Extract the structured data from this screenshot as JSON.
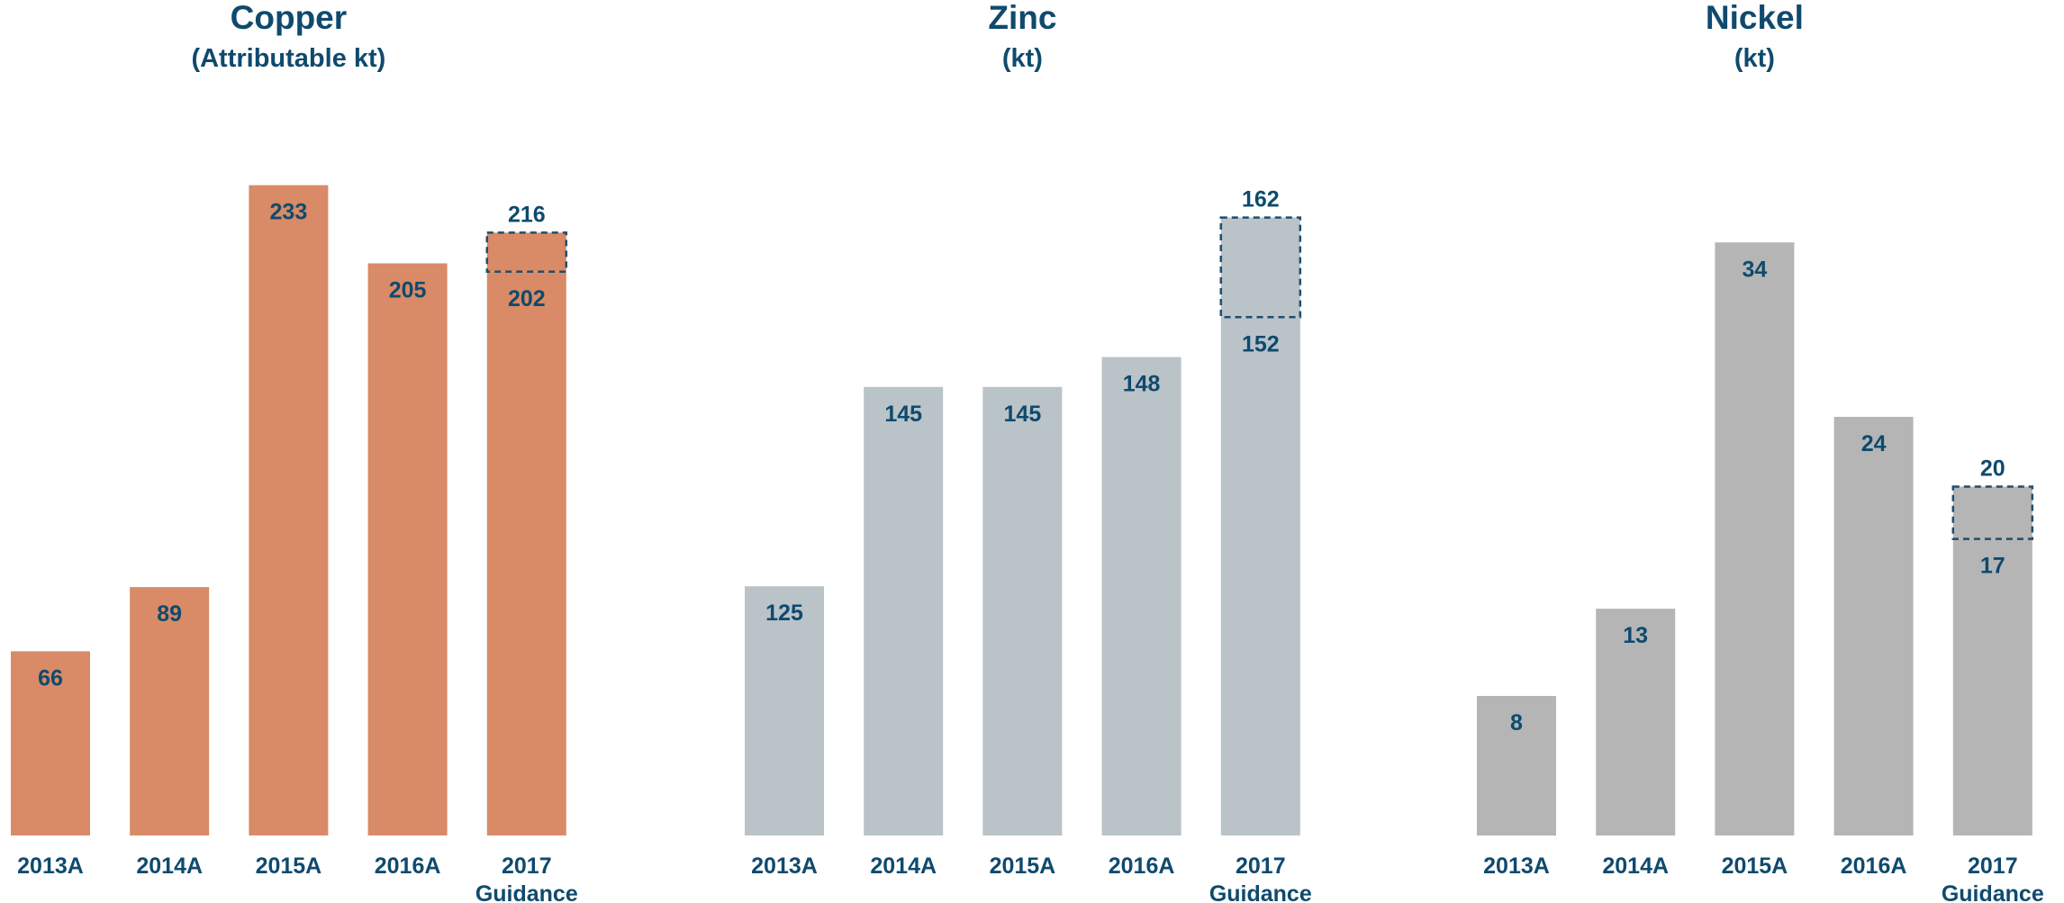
{
  "chart_data": [
    {
      "type": "bar",
      "title": "Copper",
      "subtitle": "(Attributable kt)",
      "categories": [
        "2013A",
        "2014A",
        "2015A",
        "2016A",
        "2017\nGuidance"
      ],
      "values": [
        66,
        89,
        233,
        205,
        202
      ],
      "guidance_high": 216,
      "color": "#d98a66",
      "ylim": [
        0,
        250
      ]
    },
    {
      "type": "bar",
      "title": "Zinc",
      "subtitle": "(kt)",
      "categories": [
        "2013A",
        "2014A",
        "2015A",
        "2016A",
        "2017\nGuidance"
      ],
      "values": [
        125,
        145,
        145,
        148,
        152
      ],
      "guidance_high": 162,
      "color": "#b9c3c8",
      "ylim": [
        100,
        170
      ]
    },
    {
      "type": "bar",
      "title": "Nickel",
      "subtitle": "(kt)",
      "categories": [
        "2013A",
        "2014A",
        "2015A",
        "2016A",
        "2017\nGuidance"
      ],
      "values": [
        8,
        13,
        34,
        24,
        17
      ],
      "guidance_high": 20,
      "color": "#b5b5b5",
      "ylim": [
        0,
        40
      ]
    }
  ]
}
